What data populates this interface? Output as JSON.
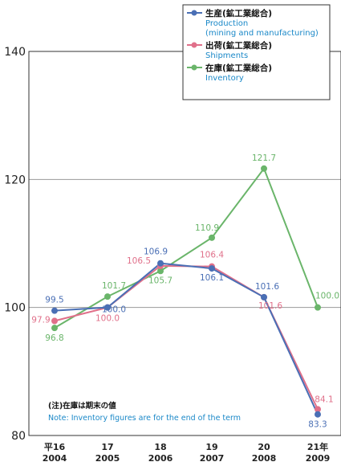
{
  "chart_data": {
    "type": "line",
    "categories": [
      {
        "jp": "平16",
        "year": "2004"
      },
      {
        "jp": "17",
        "year": "2005"
      },
      {
        "jp": "18",
        "year": "2006"
      },
      {
        "jp": "19",
        "year": "2007"
      },
      {
        "jp": "20",
        "year": "2008"
      },
      {
        "jp": "21年",
        "year": "2009"
      }
    ],
    "ylim": [
      80,
      140
    ],
    "yticks": [
      "80",
      "100",
      "120",
      "140"
    ],
    "grid_y": [
      100,
      120
    ],
    "legend_position": "top-right",
    "series": [
      {
        "key": "production",
        "name_jp": "生産(鉱工業総合)",
        "name_en_lines": [
          "Production",
          "(mining and manufacturing)"
        ],
        "color": "#4a6fb5",
        "values": [
          99.5,
          100.0,
          106.9,
          106.1,
          101.6,
          83.3
        ],
        "labels": [
          "99.5",
          "100.0",
          "106.9",
          "106.1",
          "101.6",
          "83.3"
        ]
      },
      {
        "key": "shipments",
        "name_jp": "出荷(鉱工業総合)",
        "name_en_lines": [
          "Shipments"
        ],
        "color": "#e0708a",
        "values": [
          97.9,
          100.0,
          106.5,
          106.4,
          101.6,
          84.1
        ],
        "labels": [
          "97.9",
          "100.0",
          "106.5",
          "106.4",
          "101.6",
          "84.1"
        ]
      },
      {
        "key": "inventory",
        "name_jp": "在庫(鉱工業総合)",
        "name_en_lines": [
          "Inventory"
        ],
        "color": "#6ab56a",
        "values": [
          96.8,
          101.7,
          105.7,
          110.9,
          121.7,
          100.0
        ],
        "labels": [
          "96.8",
          "101.7",
          "105.7",
          "110.9",
          "121.7",
          "100.0"
        ]
      }
    ],
    "note": {
      "jp": "(注)在庫は期末の値",
      "en": "Note: Inventory figures are for the end of the term"
    }
  }
}
